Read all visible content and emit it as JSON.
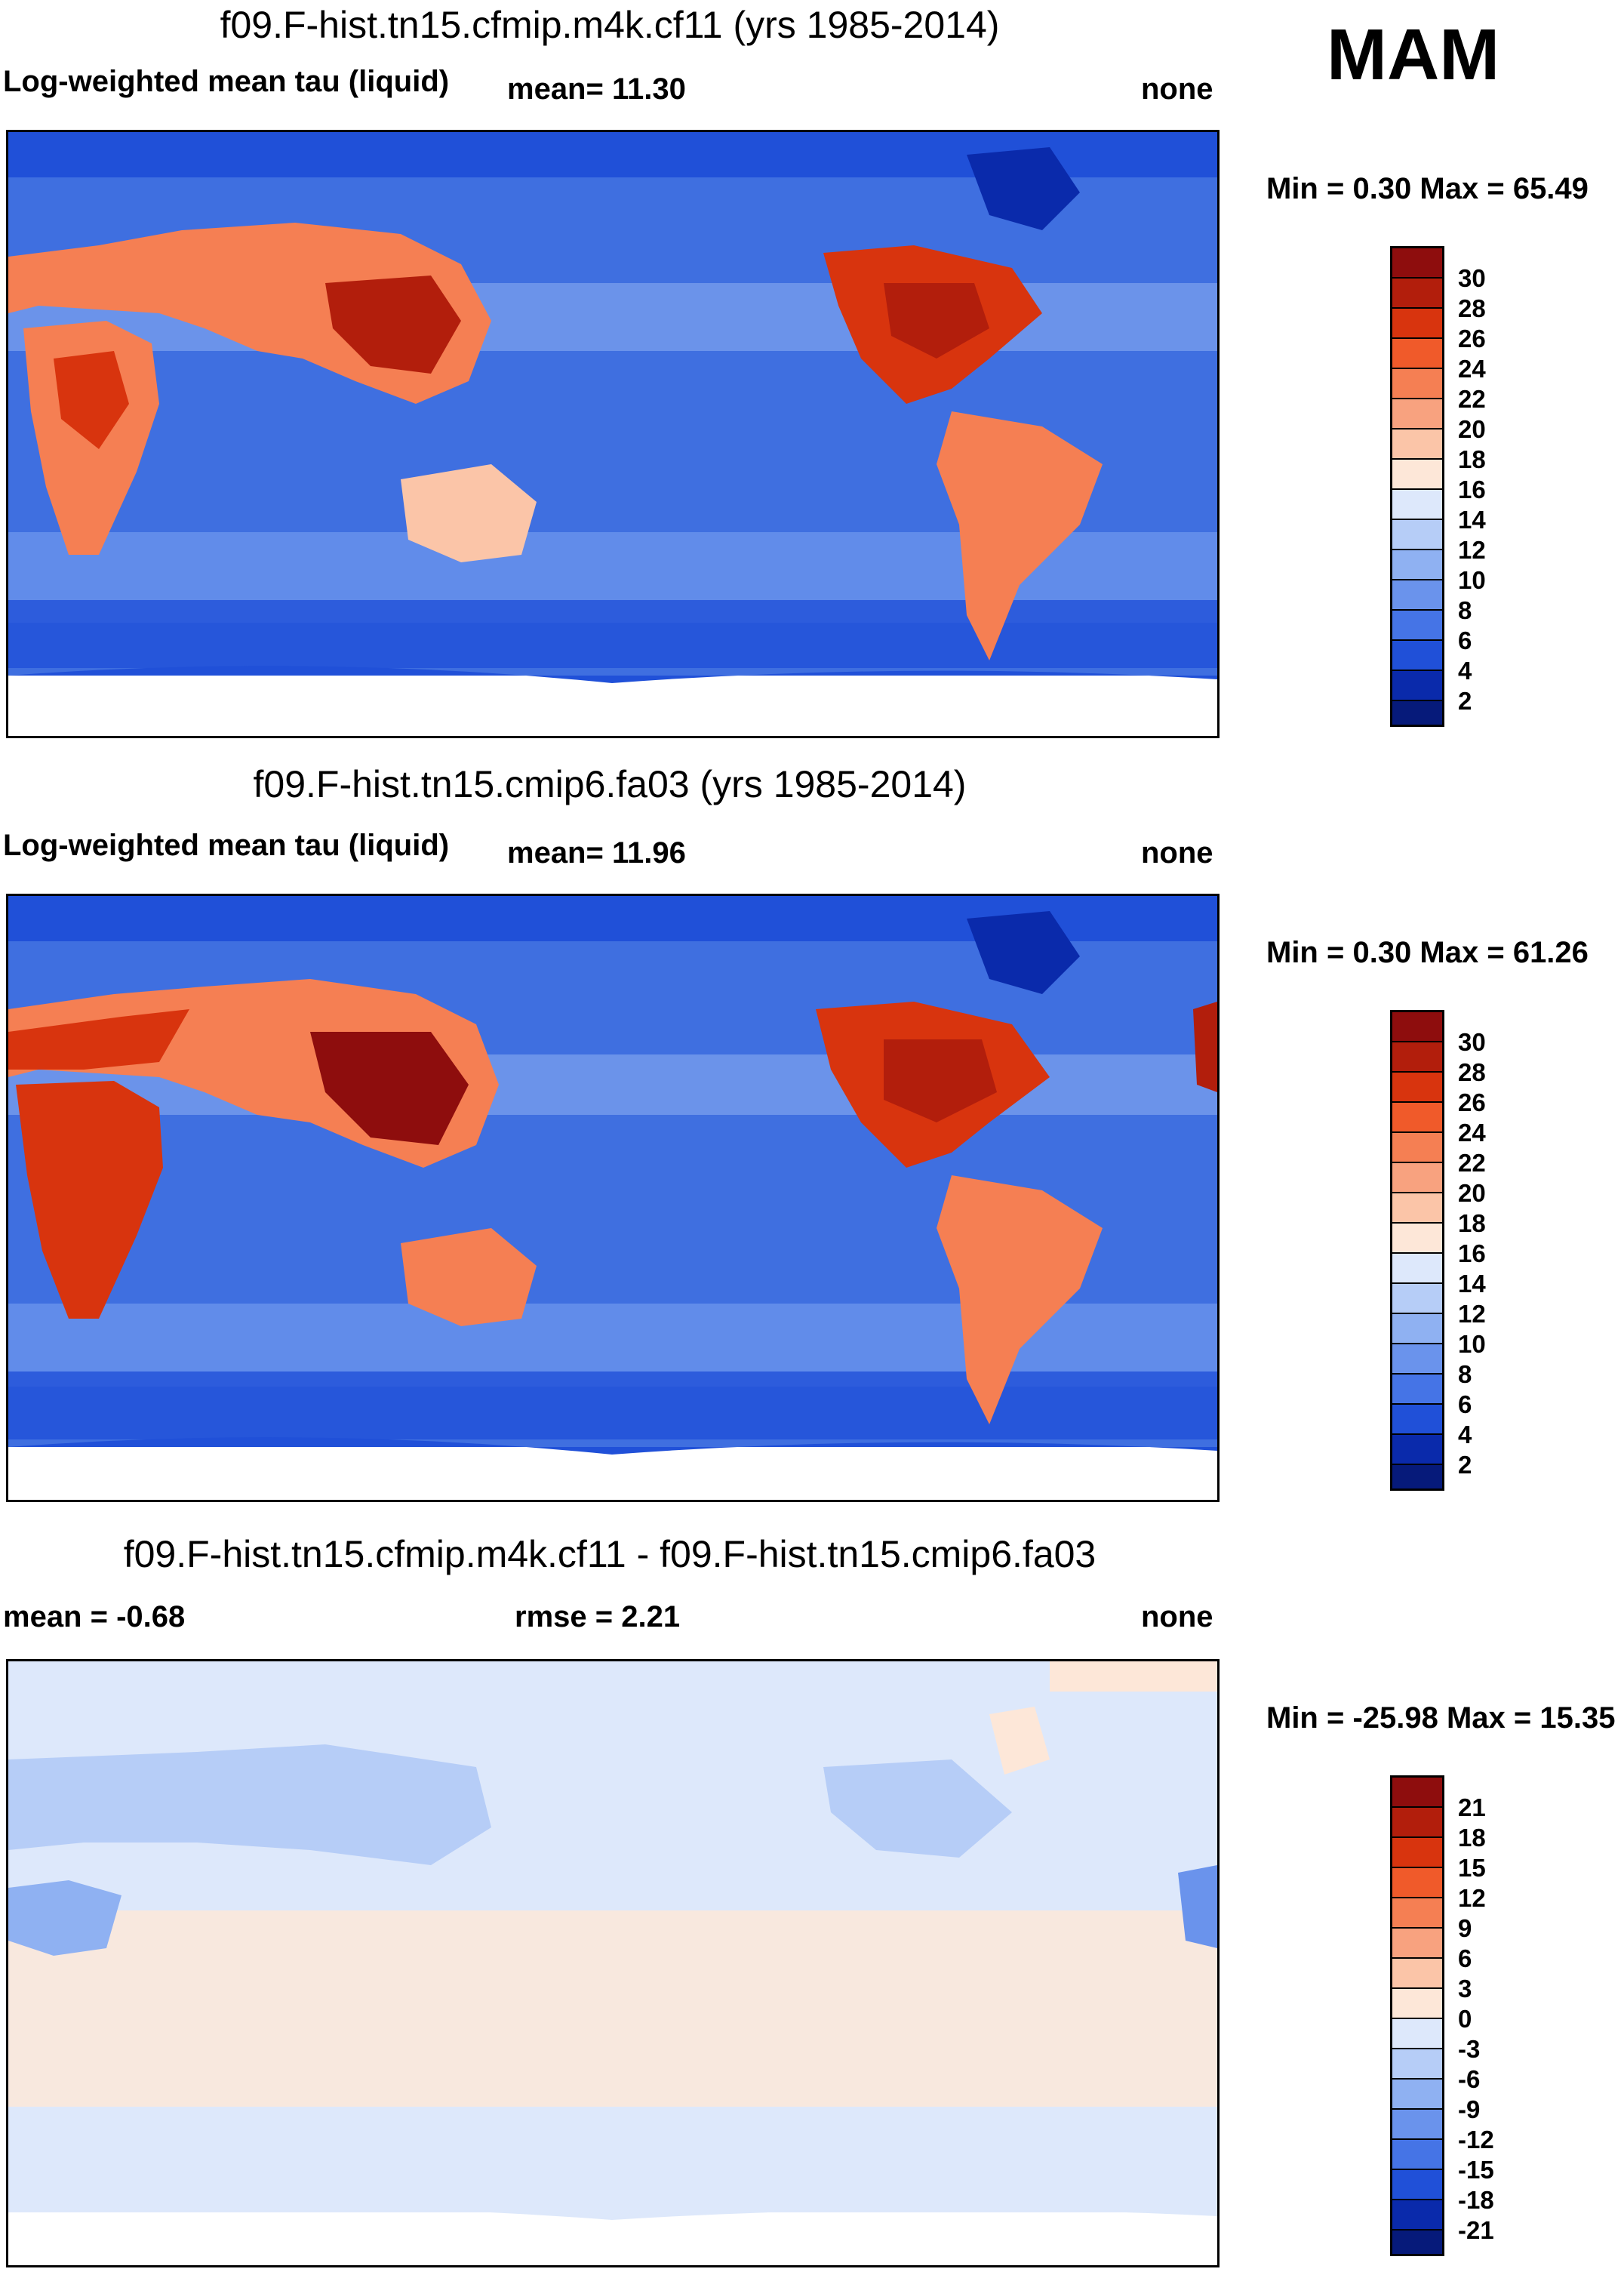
{
  "season": "MAM",
  "panels": [
    {
      "title": "f09.F-hist.tn15.cfmip.m4k.cf11 (yrs 1985-2014)",
      "left_label": "Log-weighted mean tau (liquid)",
      "center_label": "mean=  11.30",
      "right_label": "none",
      "minmax": "Min =   0.30 Max =  65.49",
      "legend": [
        "30",
        "28",
        "26",
        "24",
        "22",
        "20",
        "18",
        "16",
        "14",
        "12",
        "10",
        "8",
        "6",
        "4",
        "2"
      ]
    },
    {
      "title": "f09.F-hist.tn15.cmip6.fa03 (yrs 1985-2014)",
      "left_label": "Log-weighted mean tau (liquid)",
      "center_label": "mean=  11.96",
      "right_label": "none",
      "minmax": "Min =   0.30 Max =  61.26",
      "legend": [
        "30",
        "28",
        "26",
        "24",
        "22",
        "20",
        "18",
        "16",
        "14",
        "12",
        "10",
        "8",
        "6",
        "4",
        "2"
      ]
    },
    {
      "title": "f09.F-hist.tn15.cfmip.m4k.cf11 - f09.F-hist.tn15.cmip6.fa03",
      "left_label": "mean =  -0.68",
      "center_label": "rmse =   2.21",
      "right_label": "none",
      "minmax": "Min = -25.98 Max =  15.35",
      "legend": [
        "21",
        "18",
        "15",
        "12",
        "9",
        "6",
        "3",
        "0",
        "-3",
        "-6",
        "-9",
        "-12",
        "-15",
        "-18",
        "-21"
      ]
    }
  ],
  "colors": {
    "tau_scale": [
      "#8e0d0d",
      "#b21e0c",
      "#d8340e",
      "#f05a2a",
      "#f57f53",
      "#f8a27f",
      "#fbc5a8",
      "#fde7d8",
      "#dde8fb",
      "#b6cdf7",
      "#8fb1f2",
      "#6a93ec",
      "#4574e6",
      "#2050d8",
      "#0a2aab",
      "#061a7a"
    ],
    "diff_scale": [
      "#8e0d0d",
      "#b21e0c",
      "#d8340e",
      "#f05a2a",
      "#f57f53",
      "#f8a27f",
      "#fbc5a8",
      "#fde7d8",
      "#dde8fb",
      "#b6cdf7",
      "#8fb1f2",
      "#6a93ec",
      "#4574e6",
      "#2050d8",
      "#0a2aab",
      "#061a7a"
    ]
  }
}
